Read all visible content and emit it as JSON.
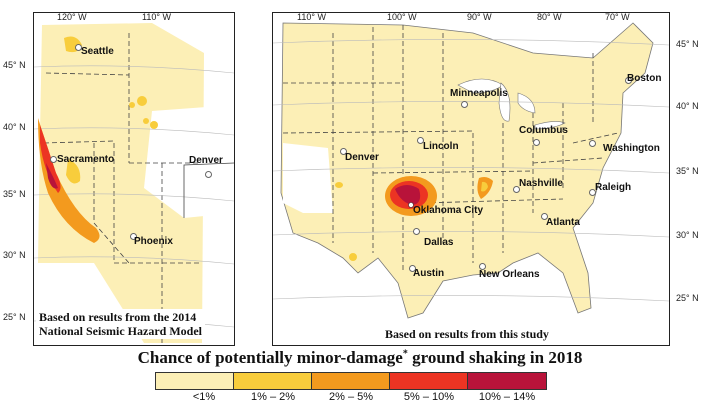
{
  "west_panel": {
    "caption_line1": "Based on results from the 2014",
    "caption_line2": "National Seismic Hazard Model",
    "lon_ticks": [
      "120° W",
      "110° W"
    ],
    "lat_ticks": [
      "45° N",
      "40° N",
      "35° N",
      "30° N",
      "25° N"
    ],
    "cities": [
      "Seattle",
      "Sacramento",
      "Denver",
      "Phoenix"
    ]
  },
  "conus_panel": {
    "caption": "Based on results from this study",
    "lon_ticks": [
      "110° W",
      "100° W",
      "90° W",
      "80° W",
      "70° W"
    ],
    "lat_ticks": [
      "45° N",
      "40° N",
      "35° N",
      "30° N",
      "25° N"
    ],
    "cities": [
      "Minneapolis",
      "Boston",
      "Denver",
      "Lincoln",
      "Columbus",
      "Washington",
      "Nashville",
      "Raleigh",
      "Oklahoma City",
      "Atlanta",
      "Dallas",
      "Austin",
      "New Orleans"
    ]
  },
  "title_main": "Chance of potentially minor-damage",
  "title_sup": "*",
  "title_tail": " ground shaking in 2018",
  "legend": [
    {
      "label": "<1%",
      "color": "#fcefb6"
    },
    {
      "label": "1% – 2%",
      "color": "#f8cd3c"
    },
    {
      "label": "2% – 5%",
      "color": "#f39a1e"
    },
    {
      "label": "5% – 10%",
      "color": "#ec3423"
    },
    {
      "label": "10% – 14%",
      "color": "#b8133a"
    }
  ],
  "colors": {
    "land": "#fcefb6",
    "level1": "#f8cd3c",
    "level2": "#f39a1e",
    "level3": "#ec3423",
    "level4": "#b8133a"
  }
}
